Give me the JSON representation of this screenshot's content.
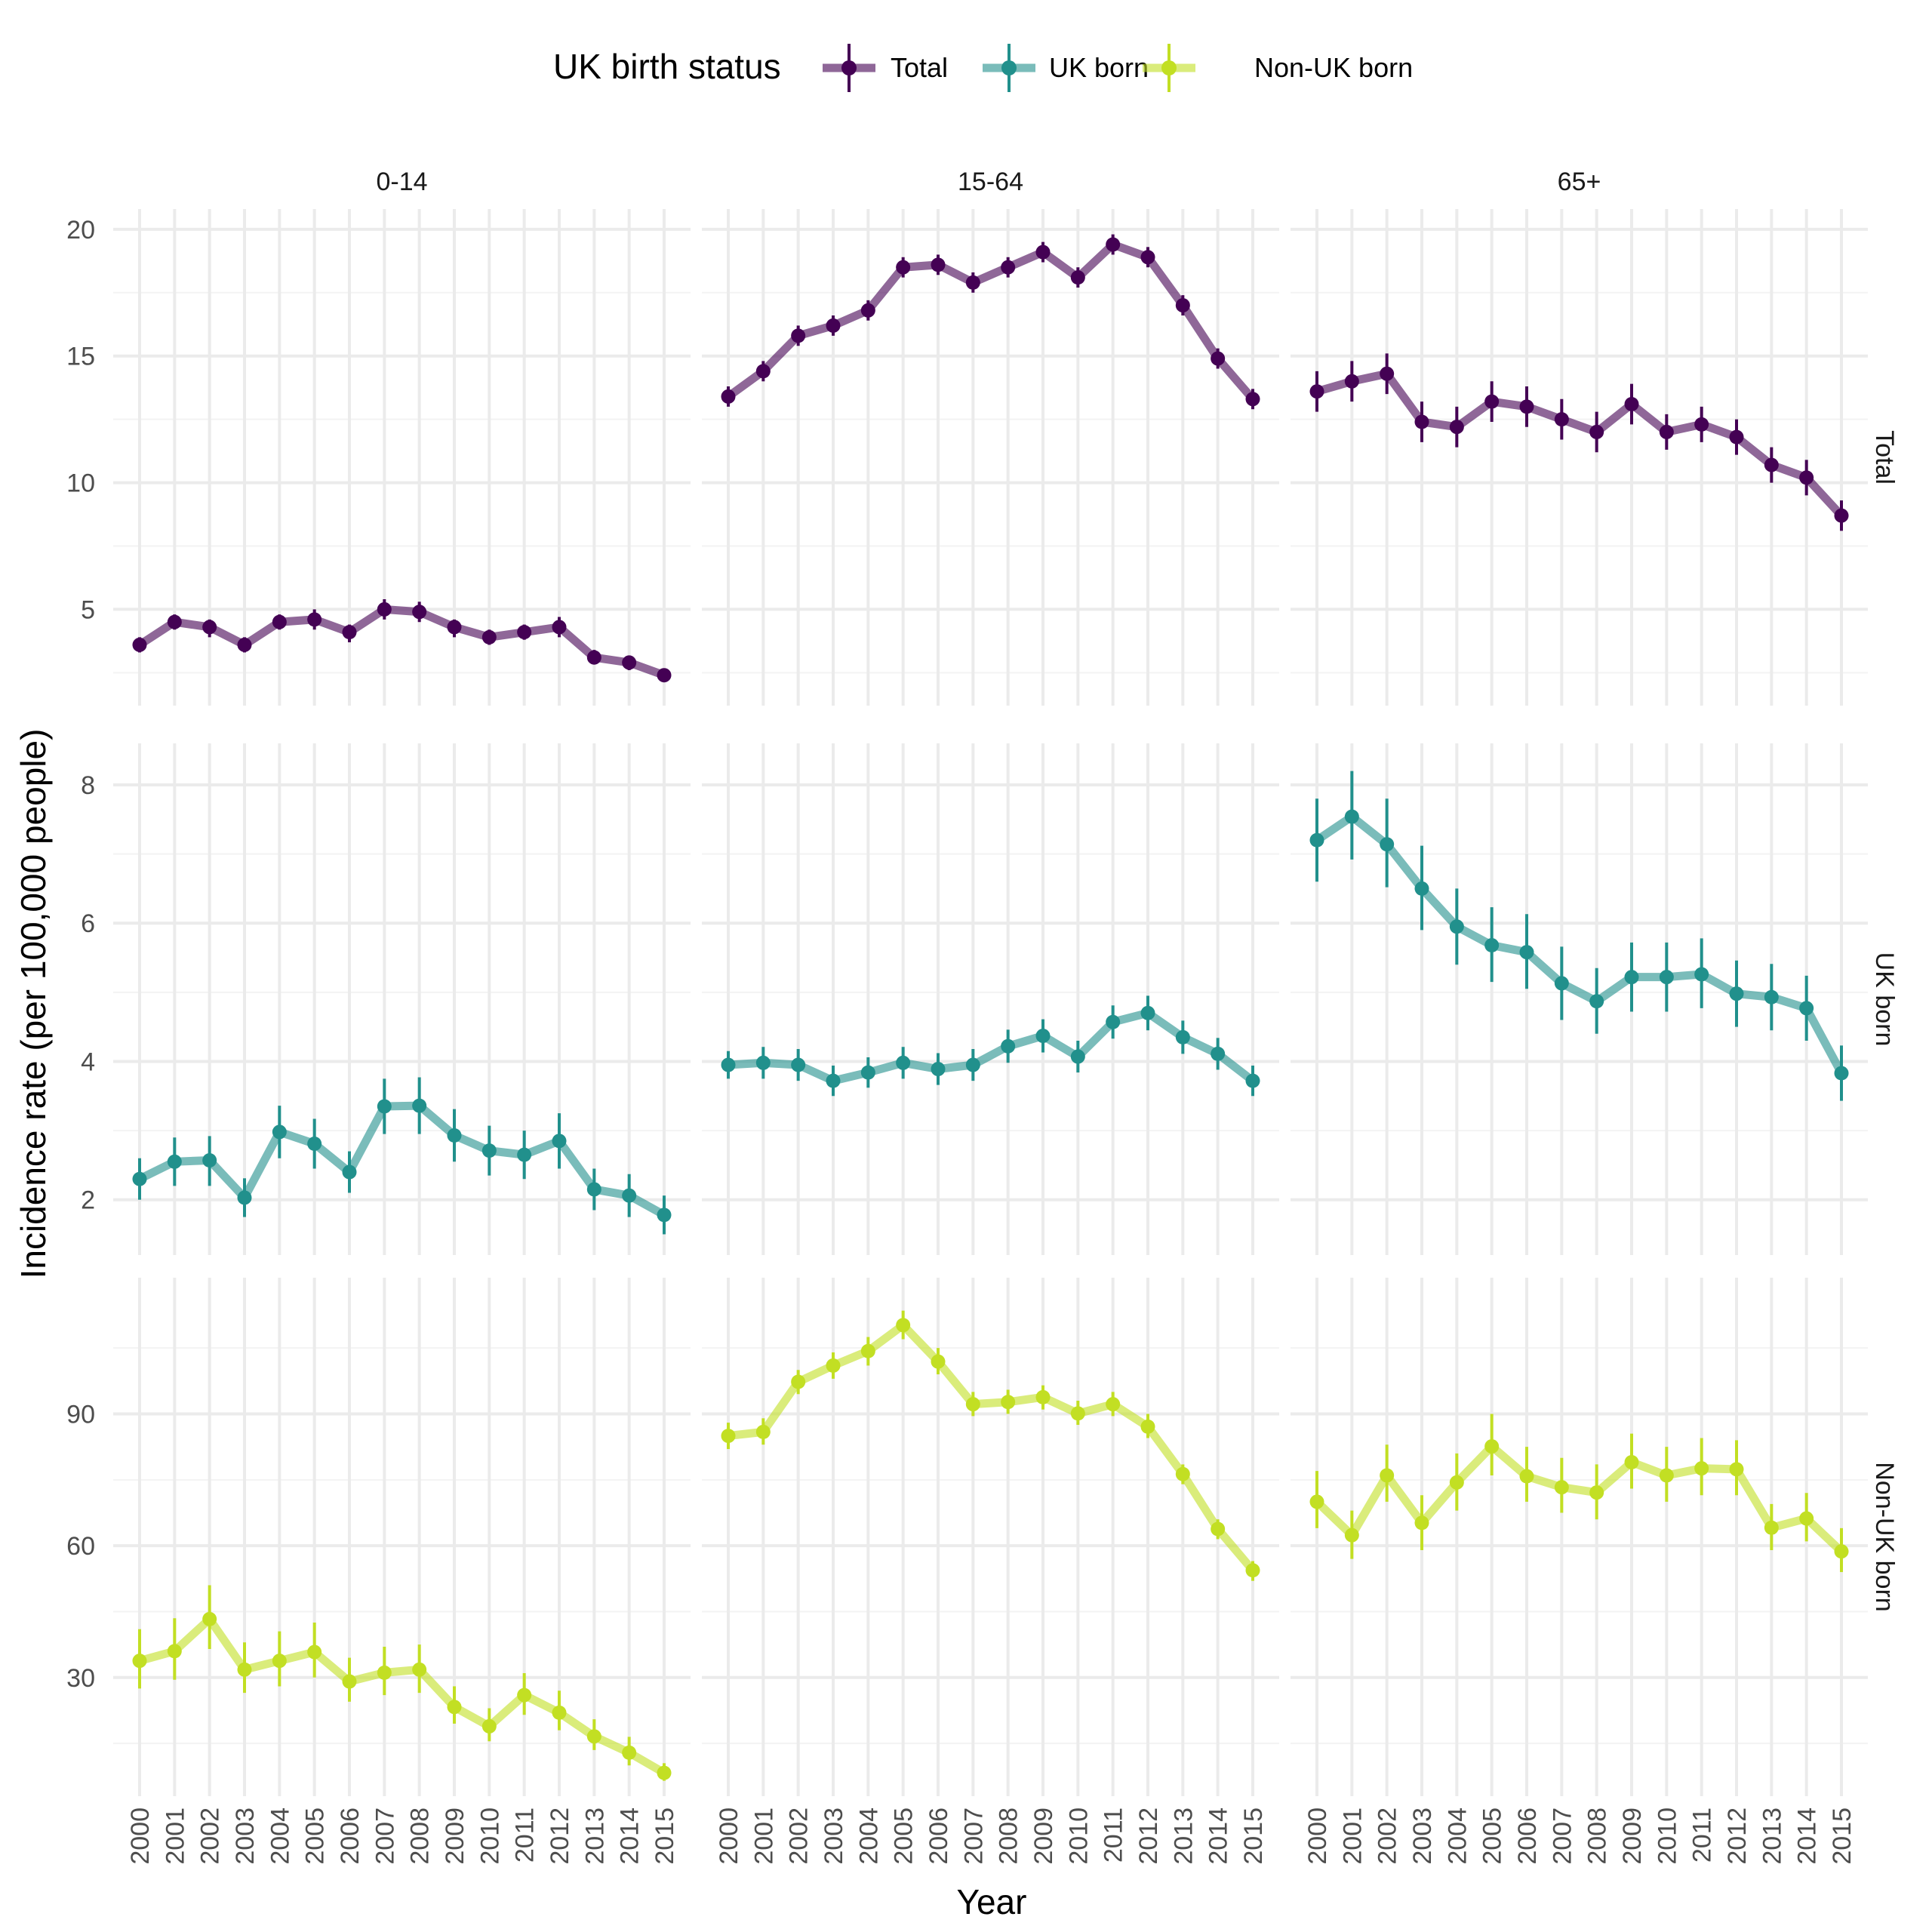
{
  "chart_data": {
    "type": "line",
    "layout": "facet_grid",
    "xlabel": "Year",
    "ylabel": "Incidence rate (per 100,000 people)",
    "legend": {
      "title": "UK birth status",
      "position": "top",
      "entries": [
        {
          "name": "Total",
          "color": "#440154"
        },
        {
          "name": "UK born",
          "color": "#21908c"
        },
        {
          "name": "Non-UK born",
          "color": "#c2df23"
        }
      ]
    },
    "years": [
      "2000",
      "2001",
      "2002",
      "2003",
      "2004",
      "2005",
      "2006",
      "2007",
      "2008",
      "2009",
      "2010",
      "2011",
      "2012",
      "2013",
      "2014",
      "2015"
    ],
    "columns": [
      "0-14",
      "15-64",
      "65+"
    ],
    "rows": [
      {
        "label": "Total",
        "color": "#440154",
        "ylim": [
          1.2,
          20.8
        ],
        "yticks": [
          5,
          10,
          15,
          20
        ],
        "panels": [
          {
            "values": [
              3.6,
              4.5,
              4.3,
              3.6,
              4.5,
              4.6,
              4.1,
              5.0,
              4.9,
              4.3,
              3.9,
              4.1,
              4.3,
              3.1,
              2.9,
              2.4
            ],
            "lower": [
              3.3,
              4.2,
              3.9,
              3.3,
              4.2,
              4.2,
              3.7,
              4.6,
              4.5,
              3.9,
              3.6,
              3.8,
              3.9,
              2.9,
              2.6,
              2.2
            ],
            "upper": [
              3.9,
              4.8,
              4.6,
              3.9,
              4.8,
              5.0,
              4.4,
              5.4,
              5.3,
              4.6,
              4.2,
              4.4,
              4.7,
              3.4,
              3.1,
              2.6
            ]
          },
          {
            "values": [
              13.4,
              14.4,
              15.8,
              16.2,
              16.8,
              18.5,
              18.6,
              17.9,
              18.5,
              19.1,
              18.1,
              19.4,
              18.9,
              17.0,
              14.9,
              13.3
            ],
            "lower": [
              13.0,
              14.0,
              15.4,
              15.8,
              16.4,
              18.1,
              18.2,
              17.5,
              18.1,
              18.7,
              17.7,
              19.0,
              18.5,
              16.6,
              14.5,
              12.9
            ],
            "upper": [
              13.8,
              14.8,
              16.2,
              16.6,
              17.2,
              18.9,
              19.0,
              18.3,
              18.9,
              19.5,
              18.5,
              19.8,
              19.3,
              17.4,
              15.3,
              13.7
            ]
          },
          {
            "values": [
              13.6,
              14.0,
              14.3,
              12.4,
              12.2,
              13.2,
              13.0,
              12.5,
              12.0,
              13.1,
              12.0,
              12.3,
              11.8,
              10.7,
              10.2,
              8.7
            ],
            "lower": [
              12.8,
              13.2,
              13.5,
              11.6,
              11.4,
              12.4,
              12.2,
              11.7,
              11.2,
              12.3,
              11.3,
              11.6,
              11.1,
              10.0,
              9.5,
              8.1
            ],
            "upper": [
              14.4,
              14.8,
              15.1,
              13.2,
              13.0,
              14.0,
              13.8,
              13.3,
              12.8,
              13.9,
              12.7,
              13.0,
              12.5,
              11.4,
              10.9,
              9.3
            ]
          }
        ]
      },
      {
        "label": "UK born",
        "color": "#21908c",
        "ylim": [
          1.2,
          8.6
        ],
        "yticks": [
          2,
          4,
          6,
          8
        ],
        "panels": [
          {
            "values": [
              2.3,
              2.55,
              2.57,
              2.03,
              2.98,
              2.81,
              2.4,
              3.35,
              3.36,
              2.93,
              2.71,
              2.65,
              2.85,
              2.15,
              2.06,
              1.78
            ],
            "lower": [
              2.0,
              2.2,
              2.2,
              1.75,
              2.6,
              2.45,
              2.1,
              2.95,
              2.95,
              2.55,
              2.35,
              2.3,
              2.45,
              1.85,
              1.75,
              1.5
            ],
            "upper": [
              2.6,
              2.9,
              2.92,
              2.31,
              3.36,
              3.17,
              2.7,
              3.75,
              3.77,
              3.31,
              3.07,
              3.0,
              3.25,
              2.45,
              2.37,
              2.06
            ]
          },
          {
            "values": [
              3.95,
              3.98,
              3.95,
              3.72,
              3.84,
              3.98,
              3.89,
              3.95,
              4.22,
              4.37,
              4.07,
              4.57,
              4.7,
              4.35,
              4.11,
              3.72
            ],
            "lower": [
              3.75,
              3.75,
              3.72,
              3.5,
              3.62,
              3.75,
              3.66,
              3.72,
              3.98,
              4.13,
              3.84,
              4.33,
              4.45,
              4.11,
              3.88,
              3.5
            ],
            "upper": [
              4.15,
              4.21,
              4.18,
              3.94,
              4.06,
              4.21,
              4.12,
              4.18,
              4.46,
              4.61,
              4.3,
              4.81,
              4.95,
              4.59,
              4.34,
              3.94
            ]
          },
          {
            "values": [
              7.2,
              7.54,
              7.14,
              6.5,
              5.95,
              5.68,
              5.58,
              5.13,
              4.87,
              5.22,
              5.22,
              5.26,
              4.98,
              4.93,
              4.77,
              3.83
            ],
            "lower": [
              6.6,
              6.92,
              6.52,
              5.9,
              5.4,
              5.15,
              5.05,
              4.6,
              4.4,
              4.72,
              4.72,
              4.77,
              4.5,
              4.45,
              4.3,
              3.43
            ],
            "upper": [
              7.8,
              8.2,
              7.8,
              7.12,
              6.5,
              6.23,
              6.13,
              5.66,
              5.35,
              5.72,
              5.72,
              5.78,
              5.46,
              5.41,
              5.24,
              4.23
            ]
          }
        ]
      },
      {
        "label": "Non-UK born",
        "color": "#c2df23",
        "ylim": [
          3,
          121
        ],
        "yticks": [
          30,
          60,
          90
        ],
        "panels": [
          {
            "values": [
              33.8,
              36.0,
              43.3,
              31.8,
              33.8,
              35.8,
              29.1,
              31.1,
              31.8,
              23.3,
              18.9,
              26.0,
              22.0,
              16.6,
              12.9,
              8.3
            ],
            "lower": [
              27.5,
              29.5,
              36.5,
              26.5,
              28.0,
              30.0,
              24.5,
              26.0,
              26.5,
              19.5,
              15.5,
              21.5,
              18.0,
              13.5,
              10.0,
              6.5
            ],
            "upper": [
              41.0,
              43.5,
              51.0,
              38.0,
              40.5,
              42.5,
              34.5,
              37.0,
              37.5,
              28.0,
              23.0,
              31.0,
              27.0,
              20.5,
              16.5,
              10.5
            ]
          },
          {
            "values": [
              85.0,
              85.9,
              97.3,
              101.0,
              104.3,
              110.2,
              101.9,
              92.2,
              92.7,
              93.8,
              90.1,
              92.2,
              87.1,
              76.3,
              63.8,
              54.4
            ],
            "lower": [
              82.0,
              83.0,
              94.5,
              98.0,
              101.0,
              107.0,
              99.0,
              89.5,
              90.0,
              91.0,
              87.5,
              89.5,
              84.5,
              74.0,
              61.5,
              52.0
            ],
            "upper": [
              88.0,
              89.0,
              100.0,
              104.0,
              107.5,
              113.5,
              105.0,
              95.0,
              95.5,
              96.5,
              93.0,
              95.0,
              90.0,
              78.5,
              66.0,
              56.5
            ]
          },
          {
            "values": [
              70.0,
              62.4,
              76.0,
              65.2,
              74.4,
              82.6,
              75.8,
              73.3,
              72.1,
              79.0,
              76.0,
              77.6,
              77.4,
              64.1,
              66.2,
              58.7
            ],
            "lower": [
              64.0,
              57.0,
              70.0,
              59.0,
              68.0,
              76.0,
              70.0,
              67.5,
              66.0,
              73.0,
              70.0,
              71.5,
              71.5,
              59.0,
              61.0,
              54.0
            ],
            "upper": [
              77.0,
              68.0,
              83.0,
              71.5,
              81.0,
              90.0,
              82.5,
              80.0,
              78.5,
              85.5,
              82.5,
              84.5,
              84.0,
              69.5,
              72.0,
              64.0
            ]
          }
        ]
      }
    ]
  }
}
